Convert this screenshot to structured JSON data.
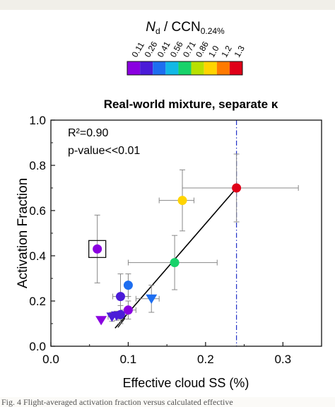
{
  "chart_data": {
    "type": "scatter",
    "title": "Real-world mixture, separate κ",
    "xlabel": "Effective cloud SS (%)",
    "ylabel": "Activation Fraction",
    "xlim": [
      0.0,
      0.35
    ],
    "ylim": [
      0.0,
      1.0
    ],
    "xticks": [
      "0.0",
      "0.1",
      "0.2",
      "0.3"
    ],
    "yticks": [
      "0.0",
      "0.2",
      "0.4",
      "0.6",
      "0.8",
      "1.0"
    ],
    "annotations": {
      "r2": "R²=0.90",
      "pvalue": "p-value<<0.01"
    },
    "vline_x": 0.24,
    "fit_line": {
      "x": [
        0.083,
        0.24
      ],
      "y": [
        0.08,
        0.7
      ]
    },
    "colorbar": {
      "title_main": "N",
      "title_sub": "d",
      "title_rest": " / CCN",
      "title_sub2": "0.24%",
      "ticks": [
        "0.11",
        "0.26",
        "0.41",
        "0.56",
        "0.71",
        "0.86",
        "1.0",
        "1.2",
        "1.3"
      ],
      "colors": [
        "#8a00e0",
        "#4b1cd8",
        "#1e6ef0",
        "#12b8e6",
        "#18d26a",
        "#b8e000",
        "#ffd400",
        "#ff7a00",
        "#e00018"
      ]
    },
    "series": [
      {
        "points": [
          {
            "x": 0.06,
            "y": 0.43,
            "xerr": [
              0.0,
              0.0
            ],
            "yerr": [
              0.15,
              0.15
            ],
            "color": "#8a00e0",
            "marker": "circle",
            "boxed": true
          },
          {
            "x": 0.1,
            "y": 0.27,
            "xerr": [
              0.0,
              0.0
            ],
            "yerr": [
              0.05,
              0.05
            ],
            "color": "#1e6ef0",
            "marker": "circle"
          },
          {
            "x": 0.09,
            "y": 0.22,
            "xerr": [
              0.01,
              0.01
            ],
            "yerr": [
              0.1,
              0.1
            ],
            "color": "#4b1cd8",
            "marker": "circle"
          },
          {
            "x": 0.1,
            "y": 0.16,
            "xerr": [
              0.01,
              0.01
            ],
            "yerr": [
              0.04,
              0.04
            ],
            "color": "#8a00e0",
            "marker": "circle"
          },
          {
            "x": 0.09,
            "y": 0.14,
            "xerr": [
              0.01,
              0.01
            ],
            "yerr": [
              0.04,
              0.04
            ],
            "color": "#4b1cd8",
            "marker": "circle"
          },
          {
            "x": 0.16,
            "y": 0.37,
            "xerr": [
              0.06,
              0.055
            ],
            "yerr": [
              0.12,
              0.12
            ],
            "color": "#18d26a",
            "marker": "circle"
          },
          {
            "x": 0.17,
            "y": 0.645,
            "xerr": [
              0.03,
              0.015
            ],
            "yerr": [
              0.135,
              0.135
            ],
            "color": "#ffd400",
            "marker": "circle"
          },
          {
            "x": 0.24,
            "y": 0.7,
            "xerr": [
              0.07,
              0.08
            ],
            "yerr": [
              0.15,
              0.15
            ],
            "color": "#e00018",
            "marker": "circle"
          },
          {
            "x": 0.13,
            "y": 0.21,
            "xerr": [
              0.02,
              0.01
            ],
            "yerr": [
              0.06,
              0.06
            ],
            "color": "#1e6ef0",
            "marker": "triangle"
          },
          {
            "x": 0.079,
            "y": 0.13,
            "xerr": [
              0.005,
              0.005
            ],
            "yerr": [
              0.02,
              0.02
            ],
            "color": "#4b1cd8",
            "marker": "triangle"
          },
          {
            "x": 0.085,
            "y": 0.135,
            "xerr": [
              0.005,
              0.005
            ],
            "yerr": [
              0.02,
              0.02
            ],
            "color": "#4b1cd8",
            "marker": "triangle"
          },
          {
            "x": 0.065,
            "y": 0.115,
            "xerr": [
              0.0,
              0.0
            ],
            "yerr": [
              0.0,
              0.0
            ],
            "color": "#8a00e0",
            "marker": "triangle"
          }
        ]
      }
    ]
  },
  "caption": "Fig. 4  Flight-averaged activation fraction versus calculated effective"
}
